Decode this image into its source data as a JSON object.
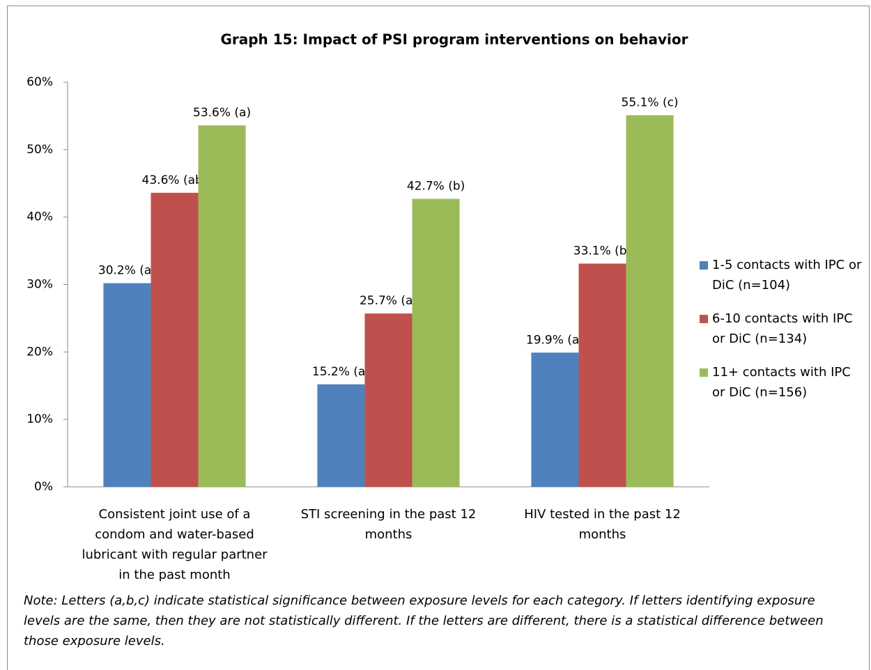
{
  "chart_data": {
    "type": "bar",
    "title": "Graph 15: Impact of PSI program interventions on behavior",
    "categories": [
      "Consistent joint use of a condom and water-based lubricant with regular partner in the past month",
      "STI screening in the past 12 months",
      "HIV tested in the past 12 months"
    ],
    "series": [
      {
        "name": "1-5 contacts with IPC or DiC (n=104)",
        "color": "#4f81bd",
        "values": [
          30.2,
          15.2,
          19.9
        ],
        "value_labels": [
          "30.2% (a)",
          "15.2% (a)",
          "19.9% (a)"
        ]
      },
      {
        "name": "6-10 contacts with IPC or DiC (n=134)",
        "color": "#c0504d",
        "values": [
          43.6,
          25.7,
          33.1
        ],
        "value_labels": [
          "43.6% (ab)",
          "25.7% (a)",
          "33.1% (b)"
        ]
      },
      {
        "name": "11+ contacts with IPC or DiC (n=156)",
        "color": "#9bbb59",
        "values": [
          53.6,
          42.7,
          55.1
        ],
        "value_labels": [
          "53.6% (a)",
          "42.7% (b)",
          "55.1% (c)"
        ]
      }
    ],
    "ylim": [
      0,
      60
    ],
    "yticks": [
      {
        "value": 0,
        "label": "0%"
      },
      {
        "value": 10,
        "label": "10%"
      },
      {
        "value": 20,
        "label": "20%"
      },
      {
        "value": 30,
        "label": "30%"
      },
      {
        "value": 40,
        "label": "40%"
      },
      {
        "value": 50,
        "label": "50%"
      },
      {
        "value": 60,
        "label": "60%"
      }
    ],
    "grid": false,
    "legend": "right",
    "note": "Note: Letters (a,b,c) indicate statistical significance between exposure levels for each category. If letters identifying exposure levels are the same, then they are not statistically different. If the letters are different, there is a statistical difference between those exposure levels."
  }
}
